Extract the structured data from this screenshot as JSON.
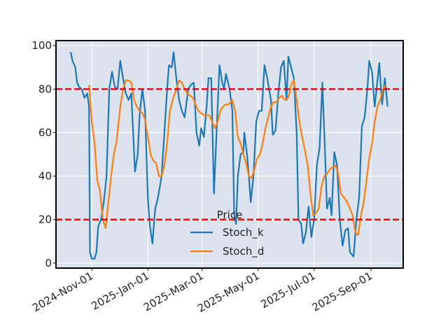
{
  "chart_data": {
    "type": "line",
    "legend_title": "Price",
    "legend_loc": "lower center",
    "background": "#dce2ee",
    "grid": true,
    "grid_color": "#ffffff",
    "xlim": [
      "2024-09-23",
      "2025-10-06"
    ],
    "xticks": [
      {
        "value": "2024-11-01",
        "label": "2024-Nov-01"
      },
      {
        "value": "2025-01-01",
        "label": "2025-Jan-01"
      },
      {
        "value": "2025-03-01",
        "label": "2025-Mar-01"
      },
      {
        "value": "2025-05-01",
        "label": "2025-May-01"
      },
      {
        "value": "2025-07-01",
        "label": "2025-Jul-01"
      },
      {
        "value": "2025-09-01",
        "label": "2025-Sep-01"
      }
    ],
    "ylim": [
      -2.3,
      102.3
    ],
    "yticks": [
      0,
      20,
      40,
      60,
      80,
      100
    ],
    "hlines": [
      {
        "value": 80,
        "color": "#ee0000"
      },
      {
        "value": 20,
        "color": "#ee0000"
      }
    ],
    "series": [
      {
        "name": "Stoch_k",
        "color": "#1f77b4",
        "x": [
          "2024-10-09",
          "2024-10-11",
          "2024-10-14",
          "2024-10-16",
          "2024-10-18",
          "2024-10-21",
          "2024-10-24",
          "2024-10-27",
          "2024-10-29",
          "2024-10-30",
          "2024-11-01",
          "2024-11-04",
          "2024-11-06",
          "2024-11-08",
          "2024-11-11",
          "2024-11-14",
          "2024-11-17",
          "2024-11-20",
          "2024-11-23",
          "2024-11-26",
          "2024-11-29",
          "2024-12-02",
          "2024-12-05",
          "2024-12-08",
          "2024-12-11",
          "2024-12-14",
          "2024-12-18",
          "2024-12-21",
          "2024-12-23",
          "2024-12-26",
          "2024-12-29",
          "2025-01-01",
          "2025-01-03",
          "2025-01-06",
          "2025-01-09",
          "2025-01-12",
          "2025-01-16",
          "2025-01-19",
          "2025-01-22",
          "2025-01-24",
          "2025-01-27",
          "2025-01-29",
          "2025-02-01",
          "2025-02-04",
          "2025-02-07",
          "2025-02-10",
          "2025-02-14",
          "2025-02-17",
          "2025-02-20",
          "2025-02-23",
          "2025-02-26",
          "2025-02-28",
          "2025-03-03",
          "2025-03-06",
          "2025-03-08",
          "2025-03-11",
          "2025-03-14",
          "2025-03-17",
          "2025-03-20",
          "2025-03-23",
          "2025-03-25",
          "2025-03-27",
          "2025-03-31",
          "2025-04-03",
          "2025-04-05",
          "2025-04-07",
          "2025-04-09",
          "2025-04-12",
          "2025-04-15",
          "2025-04-16",
          "2025-04-19",
          "2025-04-21",
          "2025-04-23",
          "2025-04-26",
          "2025-04-29",
          "2025-05-02",
          "2025-05-05",
          "2025-05-08",
          "2025-05-11",
          "2025-05-15",
          "2025-05-17",
          "2025-05-20",
          "2025-05-23",
          "2025-05-26",
          "2025-05-29",
          "2025-06-01",
          "2025-06-03",
          "2025-06-06",
          "2025-06-09",
          "2025-06-12",
          "2025-06-14",
          "2025-06-17",
          "2025-06-19",
          "2025-06-22",
          "2025-06-25",
          "2025-06-28",
          "2025-07-01",
          "2025-07-04",
          "2025-07-07",
          "2025-07-10",
          "2025-07-13",
          "2025-07-15",
          "2025-07-18",
          "2025-07-20",
          "2025-07-23",
          "2025-07-26",
          "2025-07-29",
          "2025-08-01",
          "2025-08-04",
          "2025-08-07",
          "2025-08-09",
          "2025-08-13",
          "2025-08-16",
          "2025-08-19",
          "2025-08-22",
          "2025-08-25",
          "2025-08-28",
          "2025-08-30",
          "2025-09-02",
          "2025-09-05",
          "2025-09-07",
          "2025-09-10",
          "2025-09-13",
          "2025-09-16",
          "2025-09-19"
        ],
        "values": [
          97,
          93,
          90,
          83,
          81,
          80,
          76,
          78,
          72,
          5,
          2,
          2,
          5,
          17,
          20,
          28,
          40,
          80,
          88,
          81,
          80,
          93,
          85,
          78,
          75,
          78,
          42,
          50,
          68,
          80,
          70,
          30,
          18,
          9,
          25,
          30,
          40,
          60,
          80,
          91,
          90,
          97,
          85,
          75,
          70,
          67,
          80,
          82,
          83,
          60,
          54,
          62,
          58,
          72,
          85,
          85,
          32,
          62,
          91,
          83,
          80,
          87,
          80,
          70,
          22,
          18,
          40,
          50,
          51,
          60,
          50,
          40,
          28,
          40,
          65,
          70,
          70,
          91,
          85,
          75,
          59,
          61,
          78,
          90,
          93,
          75,
          95,
          90,
          85,
          60,
          20,
          18,
          9,
          14,
          26,
          12,
          20,
          45,
          53,
          83,
          50,
          25,
          30,
          22,
          51,
          45,
          20,
          8,
          15,
          16,
          5,
          3,
          20,
          30,
          63,
          67,
          80,
          93,
          88,
          72,
          80,
          92,
          73,
          85,
          72
        ]
      },
      {
        "name": "Stoch_d",
        "color": "#ff7f0e",
        "x": [
          "2024-10-29",
          "2024-11-01",
          "2024-11-04",
          "2024-11-07",
          "2024-11-10",
          "2024-11-13",
          "2024-11-16",
          "2024-11-19",
          "2024-11-22",
          "2024-11-25",
          "2024-11-28",
          "2024-12-02",
          "2024-12-05",
          "2024-12-08",
          "2024-12-11",
          "2024-12-14",
          "2024-12-17",
          "2024-12-20",
          "2024-12-23",
          "2024-12-26",
          "2024-12-29",
          "2025-01-01",
          "2025-01-04",
          "2025-01-07",
          "2025-01-10",
          "2025-01-13",
          "2025-01-16",
          "2025-01-19",
          "2025-01-22",
          "2025-01-25",
          "2025-01-28",
          "2025-02-01",
          "2025-02-04",
          "2025-02-07",
          "2025-02-10",
          "2025-02-13",
          "2025-02-16",
          "2025-02-19",
          "2025-02-22",
          "2025-02-25",
          "2025-02-28",
          "2025-03-03",
          "2025-03-06",
          "2025-03-09",
          "2025-03-12",
          "2025-03-15",
          "2025-03-18",
          "2025-03-21",
          "2025-03-24",
          "2025-03-27",
          "2025-03-30",
          "2025-04-03",
          "2025-04-06",
          "2025-04-09",
          "2025-04-12",
          "2025-04-15",
          "2025-04-18",
          "2025-04-21",
          "2025-04-24",
          "2025-04-27",
          "2025-04-30",
          "2025-05-03",
          "2025-05-06",
          "2025-05-09",
          "2025-05-12",
          "2025-05-15",
          "2025-05-18",
          "2025-05-21",
          "2025-05-24",
          "2025-05-27",
          "2025-05-30",
          "2025-06-03",
          "2025-06-06",
          "2025-06-09",
          "2025-06-12",
          "2025-06-15",
          "2025-06-18",
          "2025-06-21",
          "2025-06-24",
          "2025-06-27",
          "2025-06-30",
          "2025-07-03",
          "2025-07-06",
          "2025-07-09",
          "2025-07-12",
          "2025-07-15",
          "2025-07-18",
          "2025-07-21",
          "2025-07-24",
          "2025-07-27",
          "2025-07-30",
          "2025-08-03",
          "2025-08-06",
          "2025-08-09",
          "2025-08-12",
          "2025-08-15",
          "2025-08-18",
          "2025-08-21",
          "2025-08-24",
          "2025-08-27",
          "2025-08-30",
          "2025-09-02",
          "2025-09-05",
          "2025-09-08",
          "2025-09-11",
          "2025-09-14",
          "2025-09-17"
        ],
        "values": [
          82,
          65,
          55,
          38,
          33,
          20,
          16,
          28,
          40,
          50,
          56,
          72,
          80,
          84,
          84,
          83,
          75,
          72,
          70,
          69,
          66,
          58,
          50,
          47,
          46,
          40,
          40,
          45,
          55,
          70,
          75,
          80,
          84,
          83,
          80,
          78,
          77,
          76,
          73,
          70,
          69,
          68,
          68,
          68,
          65,
          62,
          65,
          70,
          72,
          73,
          73,
          75,
          70,
          58,
          55,
          50,
          46,
          40,
          39,
          43,
          48,
          50,
          55,
          62,
          67,
          72,
          74,
          74,
          76,
          77,
          75,
          76,
          82,
          84,
          75,
          65,
          58,
          52,
          45,
          32,
          22,
          23,
          25,
          35,
          40,
          41,
          43,
          44,
          45,
          42,
          32,
          30,
          28,
          25,
          22,
          14,
          13,
          22,
          28,
          38,
          48,
          55,
          65,
          72,
          75,
          80,
          82
        ]
      }
    ]
  }
}
